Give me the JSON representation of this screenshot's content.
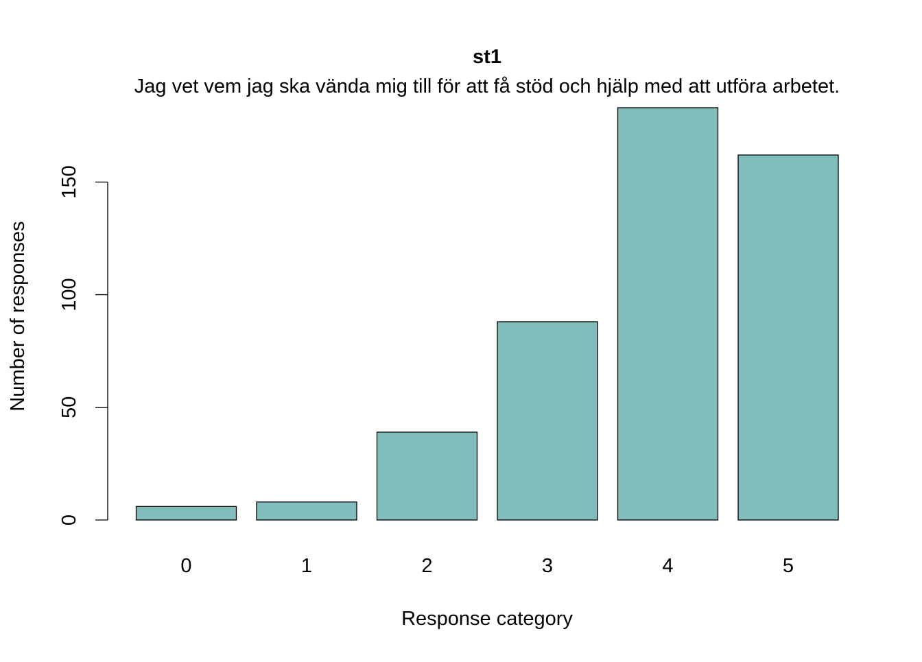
{
  "chart_data": {
    "type": "bar",
    "title": "st1",
    "subtitle": "Jag vet vem jag ska vända mig till för att få stöd och hjälp med att utföra arbetet.",
    "xlabel": "Response category",
    "ylabel": "Number of responses",
    "categories": [
      "0",
      "1",
      "2",
      "3",
      "4",
      "5"
    ],
    "values": [
      6,
      8,
      39,
      88,
      183,
      162
    ],
    "yticks": [
      0,
      50,
      100,
      150
    ],
    "ylim": [
      0,
      183
    ],
    "grid": false,
    "legend": "none",
    "colors": {
      "bar_fill": "#80BDBB",
      "bar_stroke": "#000000",
      "axis": "#000000"
    }
  }
}
